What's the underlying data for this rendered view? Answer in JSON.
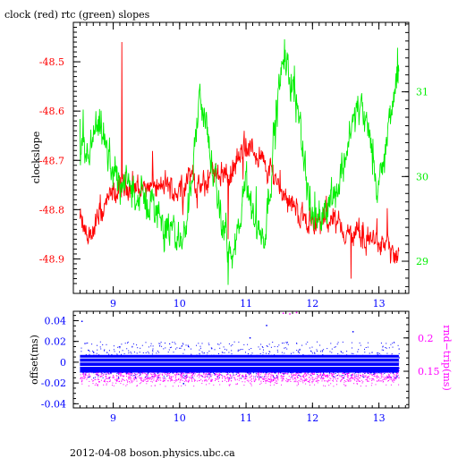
{
  "colors": {
    "clock": "#ff0000",
    "rtc": "#00ee00",
    "offset": "#0000ff",
    "roundtrip": "#ff00ff",
    "frame": "#000000",
    "white_band": "#ffffff"
  },
  "chart_data": [
    {
      "type": "line",
      "title": "clock (red) rtc (green) slopes",
      "ylabel": "clockslope",
      "xlim": [
        8.4,
        13.45
      ],
      "x_ticks": [
        "9",
        "10",
        "11",
        "12",
        "13"
      ],
      "ylim": [
        -48.97,
        -48.42
      ],
      "y_ticks": [
        "-48.5",
        "-48.6",
        "-48.7",
        "-48.8",
        "-48.9"
      ],
      "y2lim": [
        28.62,
        31.82
      ],
      "y2_ticks": [
        "31",
        "30",
        "29"
      ],
      "series": [
        {
          "axis": "left",
          "color": "#ff0000",
          "x": [
            8.5,
            8.6,
            8.7,
            8.8,
            8.9,
            9.0,
            9.1,
            9.2,
            9.3,
            9.4,
            9.5,
            9.6,
            9.7,
            9.8,
            9.9,
            10.0,
            10.1,
            10.2,
            10.3,
            10.4,
            10.5,
            10.6,
            10.7,
            10.8,
            10.9,
            11.0,
            11.1,
            11.2,
            11.3,
            11.4,
            11.5,
            11.6,
            11.7,
            11.8,
            11.9,
            12.0,
            12.1,
            12.2,
            12.3,
            12.4,
            12.5,
            12.6,
            12.7,
            12.8,
            12.9,
            13.0,
            13.1,
            13.2,
            13.3
          ],
          "values": [
            -48.82,
            -48.86,
            -48.84,
            -48.81,
            -48.79,
            -48.77,
            -48.76,
            -48.75,
            -48.75,
            -48.76,
            -48.75,
            -48.75,
            -48.76,
            -48.75,
            -48.76,
            -48.76,
            -48.74,
            -48.73,
            -48.76,
            -48.75,
            -48.72,
            -48.72,
            -48.73,
            -48.72,
            -48.7,
            -48.67,
            -48.68,
            -48.69,
            -48.72,
            -48.72,
            -48.75,
            -48.77,
            -48.79,
            -48.81,
            -48.82,
            -48.82,
            -48.83,
            -48.82,
            -48.82,
            -48.83,
            -48.85,
            -48.85,
            -48.85,
            -48.86,
            -48.86,
            -48.87,
            -48.87,
            -48.89,
            -48.91
          ],
          "spikes": [
            {
              "x": 9.13,
              "y": -48.46
            },
            {
              "x": 10.73,
              "y": -48.86
            },
            {
              "x": 12.58,
              "y": -48.94
            }
          ]
        },
        {
          "axis": "right",
          "color": "#00ee00",
          "x": [
            8.5,
            8.6,
            8.7,
            8.8,
            8.9,
            9.0,
            9.1,
            9.2,
            9.3,
            9.4,
            9.5,
            9.6,
            9.7,
            9.8,
            9.9,
            10.0,
            10.1,
            10.2,
            10.3,
            10.4,
            10.5,
            10.6,
            10.7,
            10.8,
            10.9,
            11.0,
            11.1,
            11.2,
            11.3,
            11.4,
            11.5,
            11.6,
            11.7,
            11.8,
            11.9,
            12.0,
            12.1,
            12.2,
            12.3,
            12.4,
            12.5,
            12.6,
            12.7,
            12.8,
            12.9,
            13.0,
            13.1,
            13.2,
            13.3
          ],
          "values": [
            30.3,
            30.15,
            30.45,
            30.55,
            30.3,
            30.05,
            29.95,
            29.9,
            29.85,
            29.75,
            29.7,
            29.65,
            29.55,
            29.4,
            29.3,
            29.25,
            29.4,
            30.2,
            30.9,
            30.65,
            30.0,
            29.6,
            29.3,
            29.0,
            29.4,
            29.9,
            29.6,
            29.3,
            29.4,
            30.3,
            31.1,
            31.35,
            31.1,
            30.8,
            30.0,
            29.5,
            29.55,
            29.65,
            29.8,
            29.9,
            30.3,
            30.6,
            30.85,
            30.6,
            30.3,
            29.8,
            30.3,
            30.9,
            31.2
          ],
          "spikes": [
            {
              "x": 10.73,
              "y": 28.72
            },
            {
              "x": 11.58,
              "y": 31.62
            },
            {
              "x": 13.28,
              "y": 31.52
            }
          ]
        }
      ]
    },
    {
      "type": "scatter",
      "ylabel": "offset(ms)",
      "y2label": "rnd−trip(ms)",
      "xlim": [
        8.4,
        13.45
      ],
      "x_ticks": [
        "9",
        "10",
        "11",
        "12",
        "13"
      ],
      "ylim": [
        -0.044,
        0.049
      ],
      "y_ticks": [
        "0.04",
        "0.02",
        "0",
        "-0.02",
        "-0.04"
      ],
      "y2lim": [
        0.095,
        0.24
      ],
      "y2_ticks": [
        "0.2",
        "0.15"
      ],
      "series": [
        {
          "axis": "left",
          "color": "#0000ff",
          "x_range": [
            8.5,
            13.3
          ],
          "core_band": [
            -0.01,
            0.007
          ],
          "scatter_band": [
            -0.015,
            0.02
          ],
          "outliers": [
            {
              "x": 8.52,
              "y": 0.04
            },
            {
              "x": 11.3,
              "y": 0.036
            },
            {
              "x": 11.05,
              "y": 0.024
            },
            {
              "x": 10.05,
              "y": -0.02
            },
            {
              "x": 12.6,
              "y": 0.03
            }
          ]
        },
        {
          "axis": "right",
          "color": "#ff00ff",
          "x_range": [
            8.5,
            13.3
          ],
          "core_band": [
            0.135,
            0.162
          ],
          "scatter_band": [
            0.128,
            0.175
          ],
          "outliers": [
            {
              "x": 11.55,
              "y": 0.238
            },
            {
              "x": 11.65,
              "y": 0.237
            },
            {
              "x": 11.75,
              "y": 0.239
            }
          ]
        }
      ]
    }
  ],
  "footer": "2012-04-08  boson.physics.ubc.ca"
}
